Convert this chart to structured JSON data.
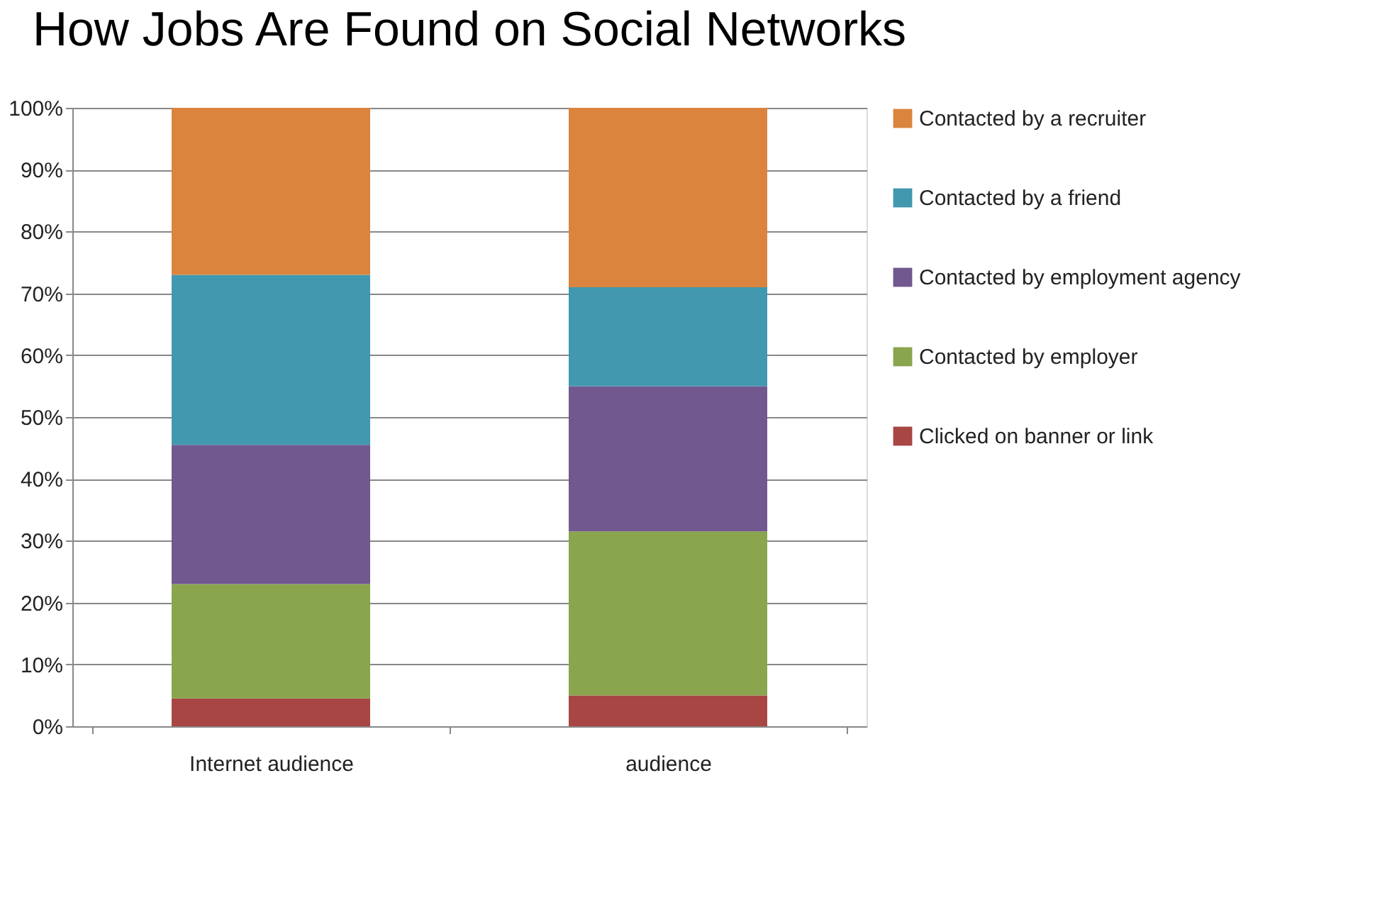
{
  "chart_data": {
    "type": "bar",
    "title": "How Jobs Are Found on Social Networks",
    "categories": [
      "Internet audience",
      "audience"
    ],
    "stacked": true,
    "series": [
      {
        "name": "Clicked on banner or link",
        "color": "#a84643",
        "values": [
          4.5,
          5
        ]
      },
      {
        "name": "Contacted by employer",
        "color": "#89a54e",
        "values": [
          18.5,
          26.5
        ]
      },
      {
        "name": "Contacted by employment agency",
        "color": "#71588f",
        "values": [
          22.5,
          23.5
        ]
      },
      {
        "name": "Contacted by a friend",
        "color": "#4198af",
        "values": [
          27.5,
          16
        ]
      },
      {
        "name": "Contacted by a recruiter",
        "color": "#db843d",
        "values": [
          27,
          29
        ]
      }
    ],
    "ylim": [
      0,
      100
    ],
    "yticks": [
      {
        "value": 0,
        "label": "0%"
      },
      {
        "value": 10,
        "label": "10%"
      },
      {
        "value": 20,
        "label": "20%"
      },
      {
        "value": 30,
        "label": "30%"
      },
      {
        "value": 40,
        "label": "40%"
      },
      {
        "value": 50,
        "label": "50%"
      },
      {
        "value": 60,
        "label": "60%"
      },
      {
        "value": 70,
        "label": "70%"
      },
      {
        "value": 80,
        "label": "80%"
      },
      {
        "value": 90,
        "label": "90%"
      },
      {
        "value": 100,
        "label": "100%"
      }
    ],
    "grid": "y",
    "legend": "right"
  }
}
